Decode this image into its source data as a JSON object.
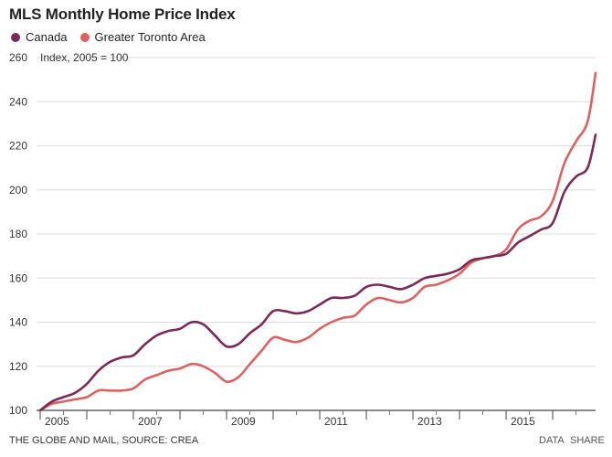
{
  "chart_data": {
    "type": "line",
    "title": "MLS Monthly Home Price Index",
    "ylabel": "Index, 2005 = 100",
    "ylim": [
      100,
      260
    ],
    "yticks": [
      100,
      120,
      140,
      160,
      180,
      200,
      220,
      240,
      260
    ],
    "xlim": [
      2005.0,
      2016.92
    ],
    "xticks": [
      {
        "value": 2005,
        "label": "2005"
      },
      {
        "value": 2007,
        "label": "2007"
      },
      {
        "value": 2009,
        "label": "2009"
      },
      {
        "value": 2011,
        "label": "2011"
      },
      {
        "value": 2013,
        "label": "2013"
      },
      {
        "value": 2015,
        "label": "2015"
      }
    ],
    "series": [
      {
        "name": "Canada",
        "color": "#7a2a55",
        "points": [
          [
            2005.0,
            100
          ],
          [
            2005.25,
            104
          ],
          [
            2005.5,
            106
          ],
          [
            2005.75,
            108
          ],
          [
            2006.0,
            112
          ],
          [
            2006.25,
            118
          ],
          [
            2006.5,
            122
          ],
          [
            2006.75,
            124
          ],
          [
            2007.0,
            125
          ],
          [
            2007.25,
            130
          ],
          [
            2007.5,
            134
          ],
          [
            2007.75,
            136
          ],
          [
            2008.0,
            137
          ],
          [
            2008.25,
            140
          ],
          [
            2008.5,
            139
          ],
          [
            2008.75,
            134
          ],
          [
            2009.0,
            129
          ],
          [
            2009.25,
            130
          ],
          [
            2009.5,
            135
          ],
          [
            2009.75,
            139
          ],
          [
            2010.0,
            145
          ],
          [
            2010.25,
            145
          ],
          [
            2010.5,
            144
          ],
          [
            2010.75,
            145
          ],
          [
            2011.0,
            148
          ],
          [
            2011.25,
            151
          ],
          [
            2011.5,
            151
          ],
          [
            2011.75,
            152
          ],
          [
            2012.0,
            156
          ],
          [
            2012.25,
            157
          ],
          [
            2012.5,
            156
          ],
          [
            2012.75,
            155
          ],
          [
            2013.0,
            157
          ],
          [
            2013.25,
            160
          ],
          [
            2013.5,
            161
          ],
          [
            2013.75,
            162
          ],
          [
            2014.0,
            164
          ],
          [
            2014.25,
            168
          ],
          [
            2014.5,
            169
          ],
          [
            2014.75,
            170
          ],
          [
            2015.0,
            171
          ],
          [
            2015.25,
            176
          ],
          [
            2015.5,
            179
          ],
          [
            2015.75,
            182
          ],
          [
            2016.0,
            185
          ],
          [
            2016.25,
            199
          ],
          [
            2016.5,
            206
          ],
          [
            2016.75,
            210
          ],
          [
            2016.92,
            225
          ]
        ]
      },
      {
        "name": "Greater Toronto Area",
        "color": "#d96262",
        "points": [
          [
            2005.0,
            100
          ],
          [
            2005.25,
            103
          ],
          [
            2005.5,
            104
          ],
          [
            2005.75,
            105
          ],
          [
            2006.0,
            106
          ],
          [
            2006.25,
            109
          ],
          [
            2006.5,
            109
          ],
          [
            2006.75,
            109
          ],
          [
            2007.0,
            110
          ],
          [
            2007.25,
            114
          ],
          [
            2007.5,
            116
          ],
          [
            2007.75,
            118
          ],
          [
            2008.0,
            119
          ],
          [
            2008.25,
            121
          ],
          [
            2008.5,
            120
          ],
          [
            2008.75,
            117
          ],
          [
            2009.0,
            113
          ],
          [
            2009.25,
            115
          ],
          [
            2009.5,
            121
          ],
          [
            2009.75,
            127
          ],
          [
            2010.0,
            133
          ],
          [
            2010.25,
            132
          ],
          [
            2010.5,
            131
          ],
          [
            2010.75,
            133
          ],
          [
            2011.0,
            137
          ],
          [
            2011.25,
            140
          ],
          [
            2011.5,
            142
          ],
          [
            2011.75,
            143
          ],
          [
            2012.0,
            148
          ],
          [
            2012.25,
            151
          ],
          [
            2012.5,
            150
          ],
          [
            2012.75,
            149
          ],
          [
            2013.0,
            151
          ],
          [
            2013.25,
            156
          ],
          [
            2013.5,
            157
          ],
          [
            2013.75,
            159
          ],
          [
            2014.0,
            162
          ],
          [
            2014.25,
            167
          ],
          [
            2014.5,
            169
          ],
          [
            2014.75,
            170
          ],
          [
            2015.0,
            173
          ],
          [
            2015.25,
            182
          ],
          [
            2015.5,
            186
          ],
          [
            2015.75,
            188
          ],
          [
            2016.0,
            195
          ],
          [
            2016.25,
            212
          ],
          [
            2016.5,
            222
          ],
          [
            2016.75,
            231
          ],
          [
            2016.92,
            253
          ]
        ]
      }
    ]
  },
  "footer": {
    "source": "THE GLOBE AND MAIL, SOURCE: CREA",
    "data_link": "DATA",
    "share_link": "SHARE"
  }
}
